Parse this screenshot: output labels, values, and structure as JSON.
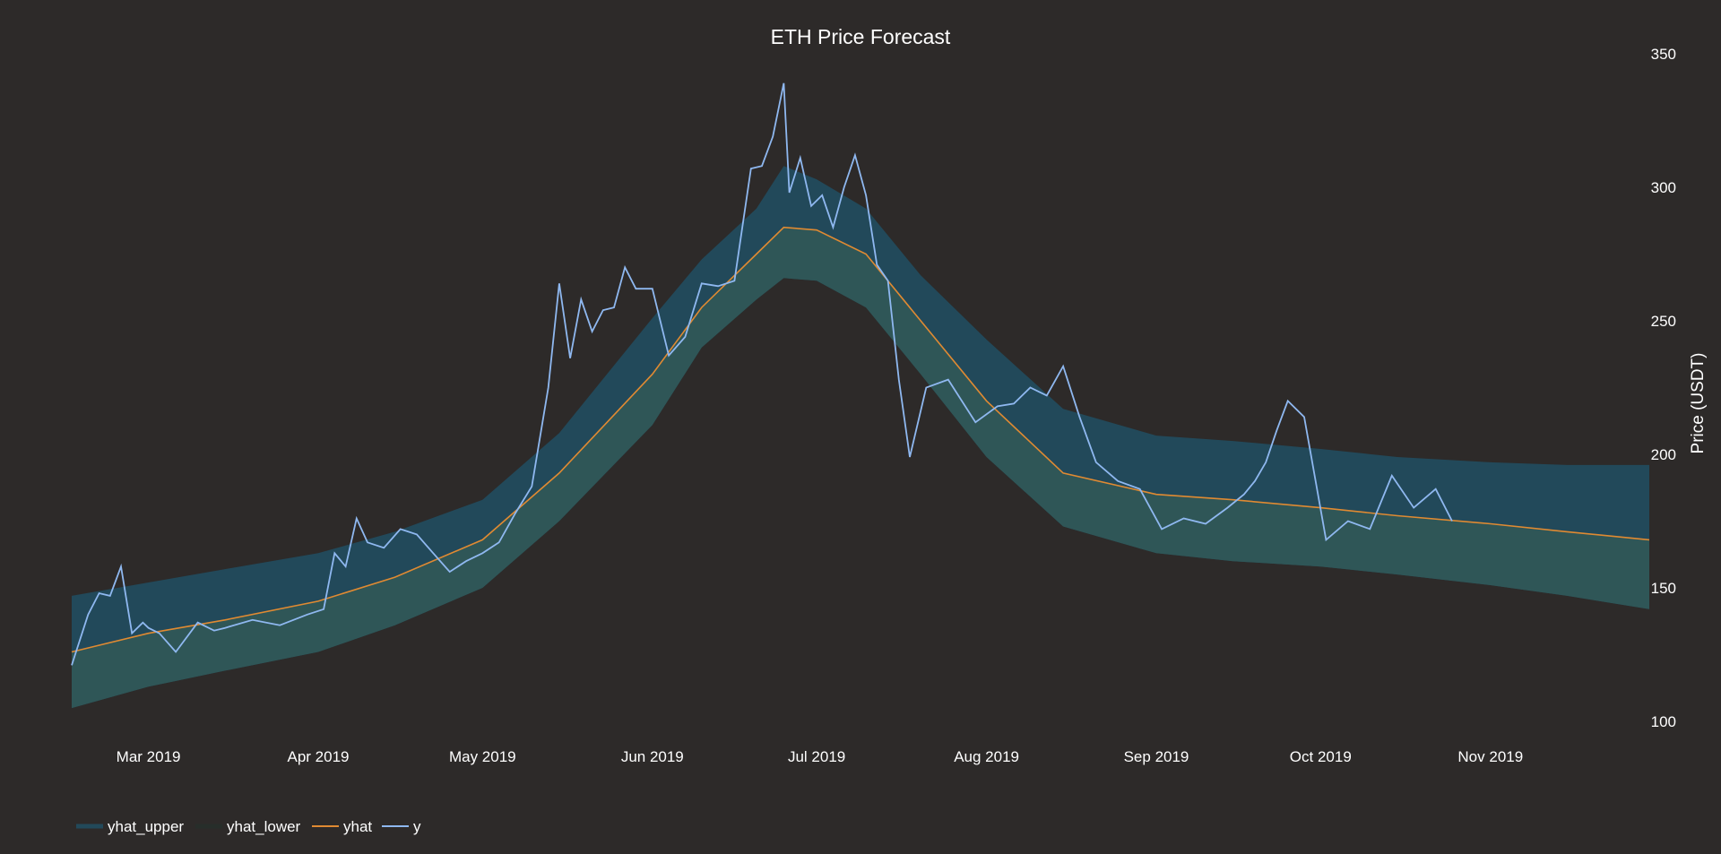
{
  "chart_data": {
    "type": "line",
    "title": "ETH Price Forecast",
    "ylabel": "Price (USDT)",
    "xlabel": "",
    "ylim": [
      100,
      350
    ],
    "xlim": [
      "2019-02-15",
      "2019-11-30"
    ],
    "yticks": [
      100,
      150,
      200,
      250,
      300,
      350
    ],
    "xticks": [
      {
        "label": "Mar 2019",
        "date": "2019-03-01"
      },
      {
        "label": "Apr 2019",
        "date": "2019-04-01"
      },
      {
        "label": "May 2019",
        "date": "2019-05-01"
      },
      {
        "label": "Jun 2019",
        "date": "2019-06-01"
      },
      {
        "label": "Jul 2019",
        "date": "2019-07-01"
      },
      {
        "label": "Aug 2019",
        "date": "2019-08-01"
      },
      {
        "label": "Sep 2019",
        "date": "2019-09-01"
      },
      {
        "label": "Oct 2019",
        "date": "2019-10-01"
      },
      {
        "label": "Nov 2019",
        "date": "2019-11-01"
      }
    ],
    "grid": false,
    "legend": "bottom-left",
    "colors": {
      "background": "#2d2a29",
      "yhat_upper": "#22495a",
      "yhat_lower": "#2d2a29",
      "band_lower_half": "#2f5657",
      "yhat": "#e08a32",
      "y": "#8fb8f0"
    },
    "series": [
      {
        "name": "yhat_upper",
        "x": [
          "2019-02-15",
          "2019-03-01",
          "2019-03-15",
          "2019-04-01",
          "2019-04-15",
          "2019-05-01",
          "2019-05-15",
          "2019-06-01",
          "2019-06-10",
          "2019-06-20",
          "2019-06-25",
          "2019-07-01",
          "2019-07-10",
          "2019-07-20",
          "2019-08-01",
          "2019-08-15",
          "2019-09-01",
          "2019-09-15",
          "2019-10-01",
          "2019-10-15",
          "2019-11-01",
          "2019-11-15",
          "2019-11-30"
        ],
        "values": [
          147,
          152,
          157,
          163,
          171,
          183,
          208,
          251,
          273,
          292,
          308,
          303,
          292,
          267,
          243,
          217,
          207,
          205,
          202,
          199,
          197,
          196,
          196
        ]
      },
      {
        "name": "yhat",
        "x": [
          "2019-02-15",
          "2019-03-01",
          "2019-03-15",
          "2019-04-01",
          "2019-04-15",
          "2019-05-01",
          "2019-05-15",
          "2019-06-01",
          "2019-06-10",
          "2019-06-20",
          "2019-06-25",
          "2019-07-01",
          "2019-07-10",
          "2019-07-20",
          "2019-08-01",
          "2019-08-15",
          "2019-09-01",
          "2019-09-15",
          "2019-10-01",
          "2019-10-15",
          "2019-11-01",
          "2019-11-15",
          "2019-11-30"
        ],
        "values": [
          126,
          133,
          138,
          145,
          154,
          168,
          193,
          230,
          255,
          275,
          285,
          284,
          275,
          250,
          220,
          193,
          185,
          183,
          180,
          177,
          174,
          171,
          168
        ]
      },
      {
        "name": "yhat_lower",
        "x": [
          "2019-02-15",
          "2019-03-01",
          "2019-03-15",
          "2019-04-01",
          "2019-04-15",
          "2019-05-01",
          "2019-05-15",
          "2019-06-01",
          "2019-06-10",
          "2019-06-20",
          "2019-06-25",
          "2019-07-01",
          "2019-07-10",
          "2019-07-20",
          "2019-08-01",
          "2019-08-15",
          "2019-09-01",
          "2019-09-15",
          "2019-10-01",
          "2019-10-15",
          "2019-11-01",
          "2019-11-15",
          "2019-11-30"
        ],
        "values": [
          105,
          113,
          119,
          126,
          136,
          150,
          175,
          211,
          240,
          258,
          266,
          265,
          255,
          230,
          199,
          173,
          163,
          160,
          158,
          155,
          151,
          147,
          142
        ]
      },
      {
        "name": "y",
        "x": [
          "2019-02-15",
          "2019-02-18",
          "2019-02-20",
          "2019-02-22",
          "2019-02-24",
          "2019-02-26",
          "2019-02-28",
          "2019-03-01",
          "2019-03-03",
          "2019-03-06",
          "2019-03-10",
          "2019-03-13",
          "2019-03-15",
          "2019-03-20",
          "2019-03-25",
          "2019-03-30",
          "2019-04-02",
          "2019-04-04",
          "2019-04-06",
          "2019-04-08",
          "2019-04-10",
          "2019-04-13",
          "2019-04-16",
          "2019-04-19",
          "2019-04-22",
          "2019-04-25",
          "2019-04-28",
          "2019-05-01",
          "2019-05-04",
          "2019-05-07",
          "2019-05-10",
          "2019-05-13",
          "2019-05-15",
          "2019-05-17",
          "2019-05-19",
          "2019-05-21",
          "2019-05-23",
          "2019-05-25",
          "2019-05-27",
          "2019-05-29",
          "2019-06-01",
          "2019-06-04",
          "2019-06-07",
          "2019-06-10",
          "2019-06-13",
          "2019-06-16",
          "2019-06-19",
          "2019-06-21",
          "2019-06-23",
          "2019-06-25",
          "2019-06-26",
          "2019-06-28",
          "2019-06-30",
          "2019-07-02",
          "2019-07-04",
          "2019-07-06",
          "2019-07-08",
          "2019-07-10",
          "2019-07-12",
          "2019-07-14",
          "2019-07-16",
          "2019-07-18",
          "2019-07-21",
          "2019-07-25",
          "2019-07-30",
          "2019-08-03",
          "2019-08-06",
          "2019-08-09",
          "2019-08-12",
          "2019-08-15",
          "2019-08-18",
          "2019-08-21",
          "2019-08-25",
          "2019-08-29",
          "2019-09-02",
          "2019-09-06",
          "2019-09-10",
          "2019-09-14",
          "2019-09-17",
          "2019-09-19",
          "2019-09-21",
          "2019-09-23",
          "2019-09-25",
          "2019-09-28",
          "2019-10-02",
          "2019-10-06",
          "2019-10-10",
          "2019-10-14",
          "2019-10-18",
          "2019-10-22",
          "2019-10-25"
        ],
        "values": [
          121,
          140,
          148,
          147,
          158,
          133,
          137,
          135,
          133,
          126,
          137,
          134,
          135,
          138,
          136,
          140,
          142,
          163,
          158,
          176,
          167,
          165,
          172,
          170,
          163,
          156,
          160,
          163,
          167,
          178,
          188,
          225,
          264,
          236,
          258,
          246,
          254,
          255,
          270,
          262,
          262,
          237,
          244,
          264,
          263,
          265,
          307,
          308,
          319,
          339,
          298,
          311,
          293,
          297,
          285,
          300,
          312,
          297,
          271,
          265,
          228,
          199,
          225,
          228,
          212,
          218,
          219,
          225,
          222,
          233,
          214,
          197,
          190,
          187,
          172,
          176,
          174,
          180,
          185,
          190,
          197,
          209,
          220,
          214,
          168,
          175,
          172,
          192,
          180,
          187,
          175
        ]
      }
    ],
    "legend_entries": [
      "yhat_upper",
      "yhat_lower",
      "yhat",
      "y"
    ]
  }
}
